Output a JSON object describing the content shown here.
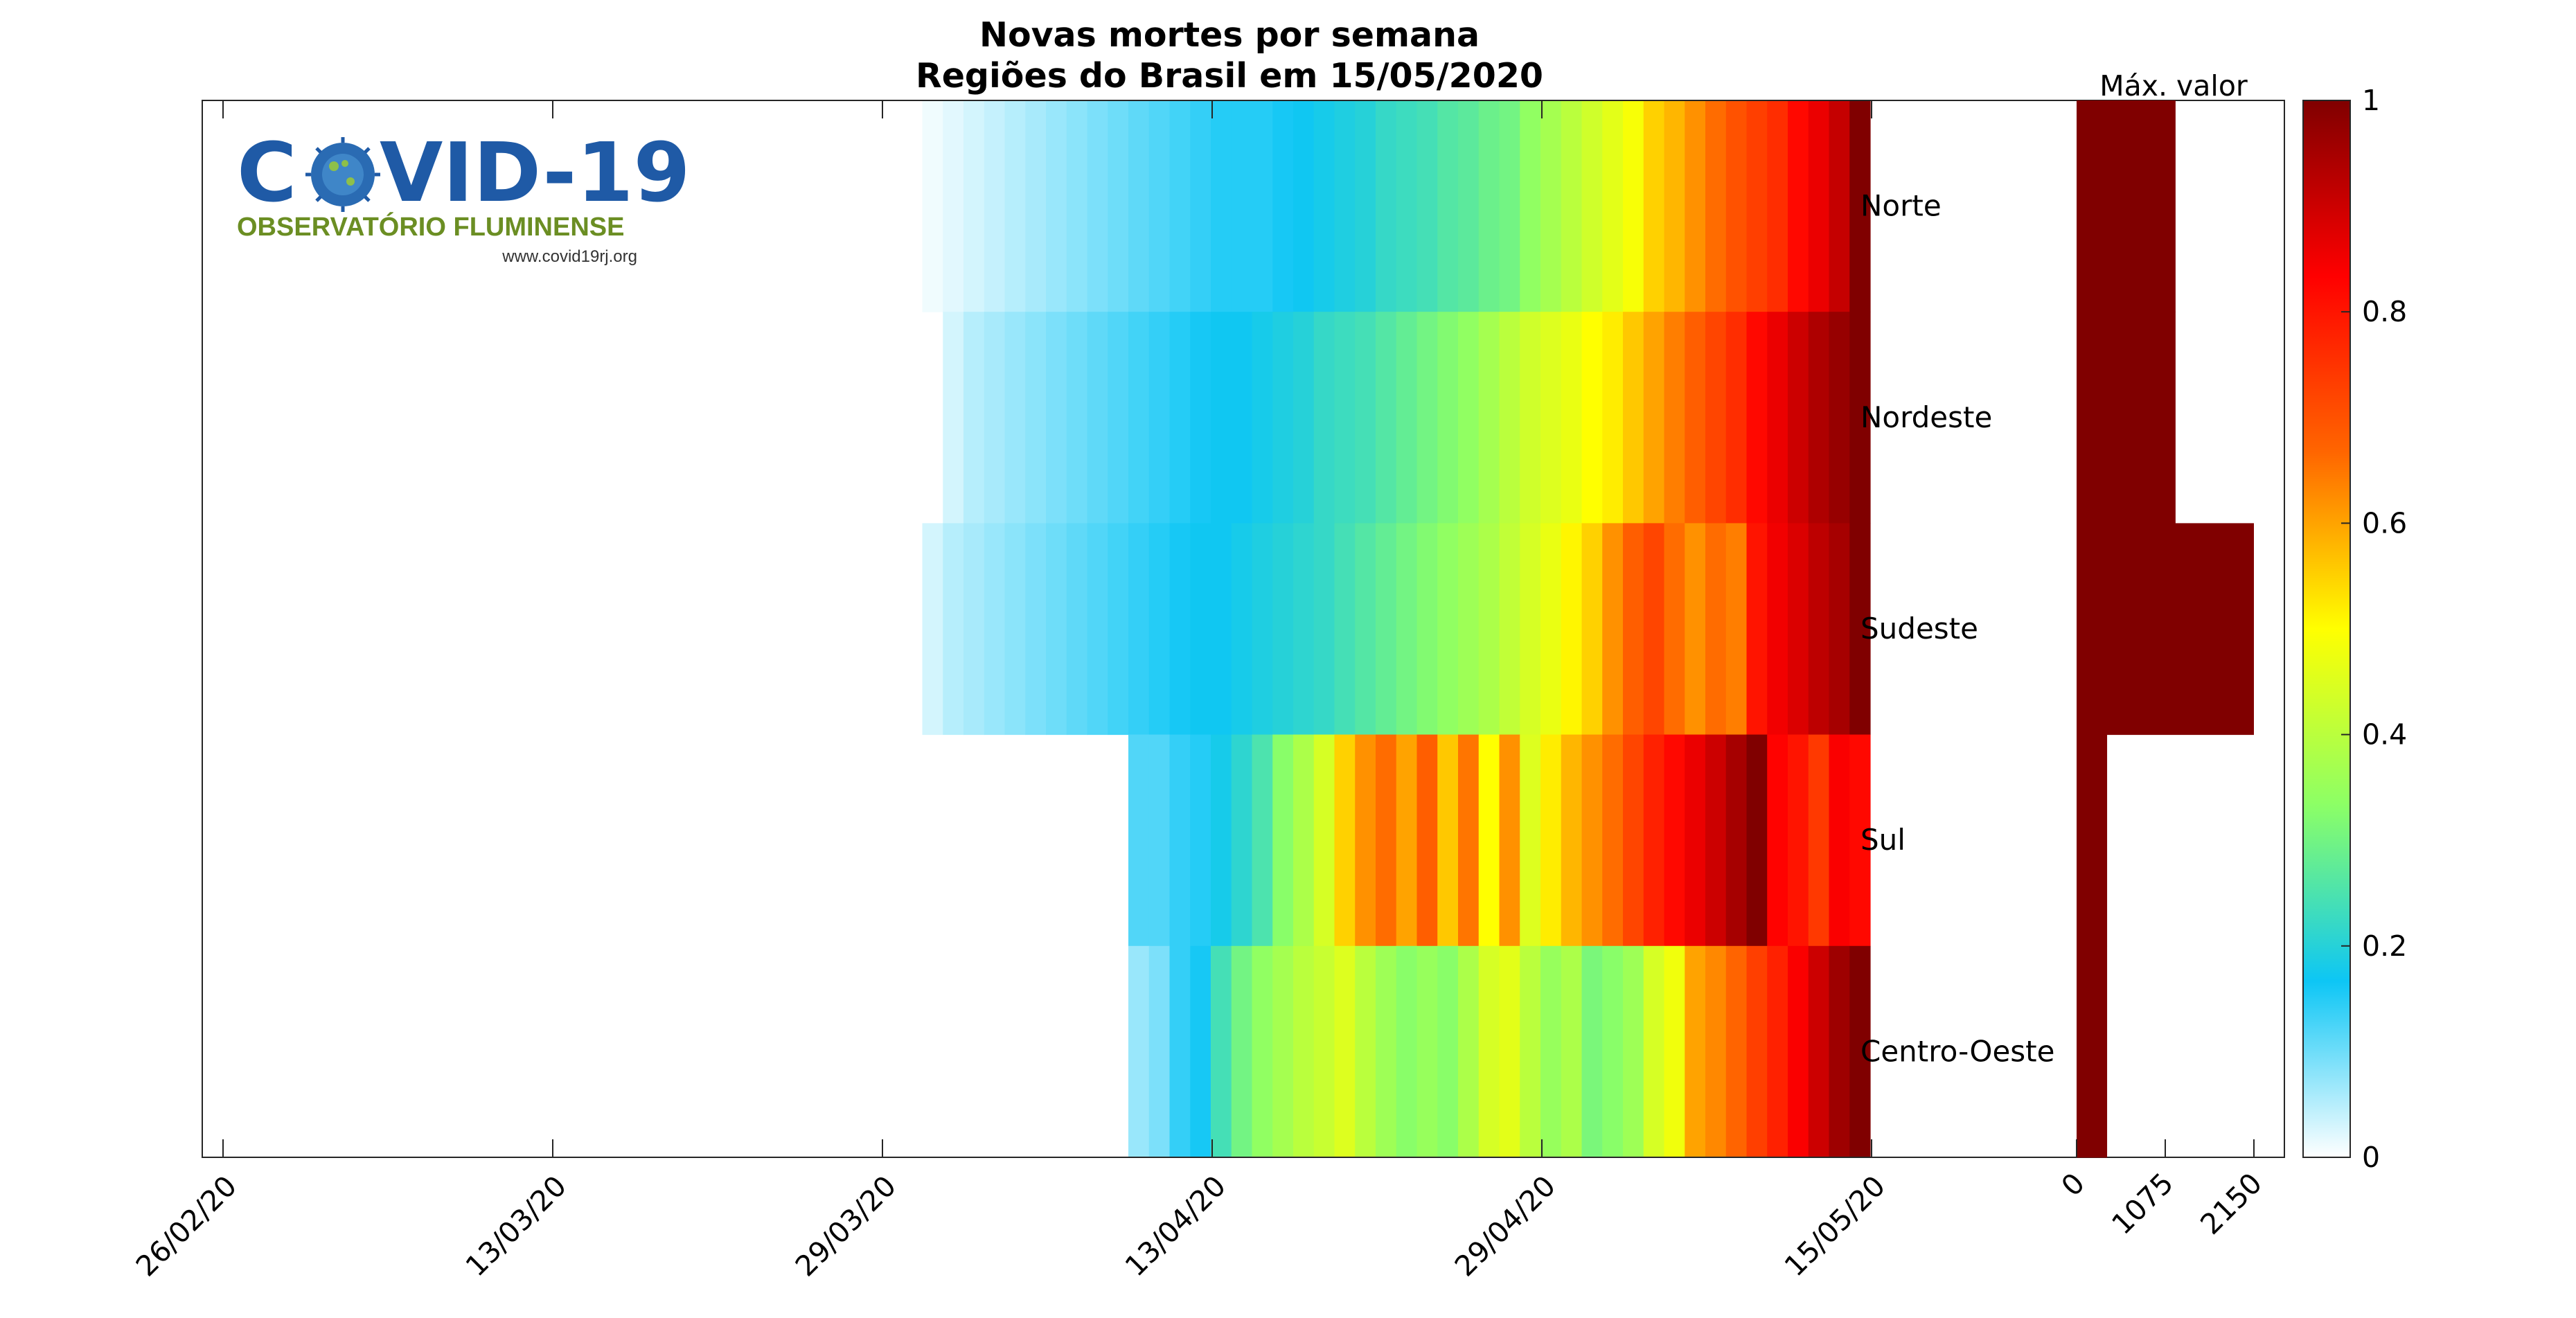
{
  "chart_data": {
    "type": "heatmap",
    "title": "Novas mortes por semana",
    "subtitle": "Regiões do Brasil em 15/05/2020",
    "x_tick_labels": [
      "26/02/20",
      "13/03/20",
      "29/03/20",
      "13/04/20",
      "29/04/20",
      "15/05/20"
    ],
    "x_range_dates": [
      "25/02/20",
      "16/05/20"
    ],
    "rows": [
      {
        "name": "Norte",
        "values": [
          0.01,
          0.02,
          0.03,
          0.04,
          0.05,
          0.06,
          0.07,
          0.08,
          0.09,
          0.1,
          0.11,
          0.12,
          0.13,
          0.14,
          0.15,
          0.15,
          0.15,
          0.16,
          0.17,
          0.18,
          0.19,
          0.2,
          0.22,
          0.23,
          0.24,
          0.26,
          0.27,
          0.29,
          0.3,
          0.34,
          0.37,
          0.4,
          0.43,
          0.46,
          0.49,
          0.55,
          0.58,
          0.62,
          0.66,
          0.7,
          0.73,
          0.76,
          0.82,
          0.86,
          0.91,
          1
        ]
      },
      {
        "name": "Nordeste",
        "values": [
          0.03,
          0.05,
          0.06,
          0.07,
          0.08,
          0.09,
          0.1,
          0.11,
          0.12,
          0.13,
          0.14,
          0.15,
          0.16,
          0.17,
          0.17,
          0.18,
          0.19,
          0.2,
          0.22,
          0.23,
          0.24,
          0.26,
          0.28,
          0.3,
          0.32,
          0.34,
          0.37,
          0.4,
          0.43,
          0.45,
          0.47,
          0.5,
          0.52,
          0.56,
          0.6,
          0.64,
          0.68,
          0.72,
          0.76,
          0.82,
          0.86,
          0.9,
          0.94,
          0.97,
          1
        ]
      },
      {
        "name": "Sudeste",
        "values": [
          0.03,
          0.05,
          0.06,
          0.07,
          0.08,
          0.09,
          0.1,
          0.11,
          0.12,
          0.13,
          0.14,
          0.15,
          0.16,
          0.17,
          0.17,
          0.18,
          0.19,
          0.2,
          0.21,
          0.22,
          0.24,
          0.26,
          0.28,
          0.3,
          0.32,
          0.34,
          0.36,
          0.38,
          0.41,
          0.44,
          0.47,
          0.51,
          0.55,
          0.62,
          0.68,
          0.72,
          0.66,
          0.62,
          0.66,
          0.64,
          0.8,
          0.85,
          0.88,
          0.92,
          0.95,
          1
        ]
      },
      {
        "name": "Sul",
        "values": [
          0.12,
          0.12,
          0.14,
          0.15,
          0.18,
          0.21,
          0.25,
          0.33,
          0.38,
          0.44,
          0.55,
          0.62,
          0.66,
          0.6,
          0.68,
          0.56,
          0.65,
          0.5,
          0.62,
          0.45,
          0.52,
          0.58,
          0.62,
          0.66,
          0.72,
          0.78,
          0.82,
          0.86,
          0.9,
          0.95,
          1,
          0.83,
          0.8,
          0.74,
          0.84,
          0.82
        ]
      },
      {
        "name": "Centro-Oeste",
        "values": [
          0.07,
          0.09,
          0.14,
          0.16,
          0.24,
          0.3,
          0.34,
          0.37,
          0.4,
          0.42,
          0.45,
          0.4,
          0.36,
          0.33,
          0.35,
          0.33,
          0.38,
          0.44,
          0.46,
          0.4,
          0.35,
          0.38,
          0.31,
          0.33,
          0.36,
          0.44,
          0.48,
          0.6,
          0.63,
          0.67,
          0.73,
          0.78,
          0.84,
          0.9,
          0.96,
          1
        ]
      }
    ],
    "max_value_panel": {
      "title": "Máx. valor",
      "x_tick_labels": [
        "0",
        "1075",
        "2150"
      ],
      "xlim": [
        0,
        2150
      ],
      "values": [
        {
          "region": "Norte",
          "value": 1200
        },
        {
          "region": "Nordeste",
          "value": 1200
        },
        {
          "region": "Sudeste",
          "value": 2150
        },
        {
          "region": "Sul",
          "value": 370
        },
        {
          "region": "Centro-Oeste",
          "value": 370
        }
      ],
      "bar_color": "#800000"
    },
    "colorbar": {
      "range": [
        0,
        1
      ],
      "tick_labels": [
        "0",
        "0.2",
        "0.4",
        "0.6",
        "0.8",
        "1"
      ]
    },
    "colormap": [
      "#ffffff",
      "#0dc6f5",
      "#8cff66",
      "#ffff00",
      "#ff6600",
      "#ff0000",
      "#800000"
    ]
  },
  "logo": {
    "title_left": "C",
    "title_right": "VID-19",
    "subtitle": "OBSERVATÓRIO FLUMINENSE",
    "url": "www.covid19rj.org"
  }
}
